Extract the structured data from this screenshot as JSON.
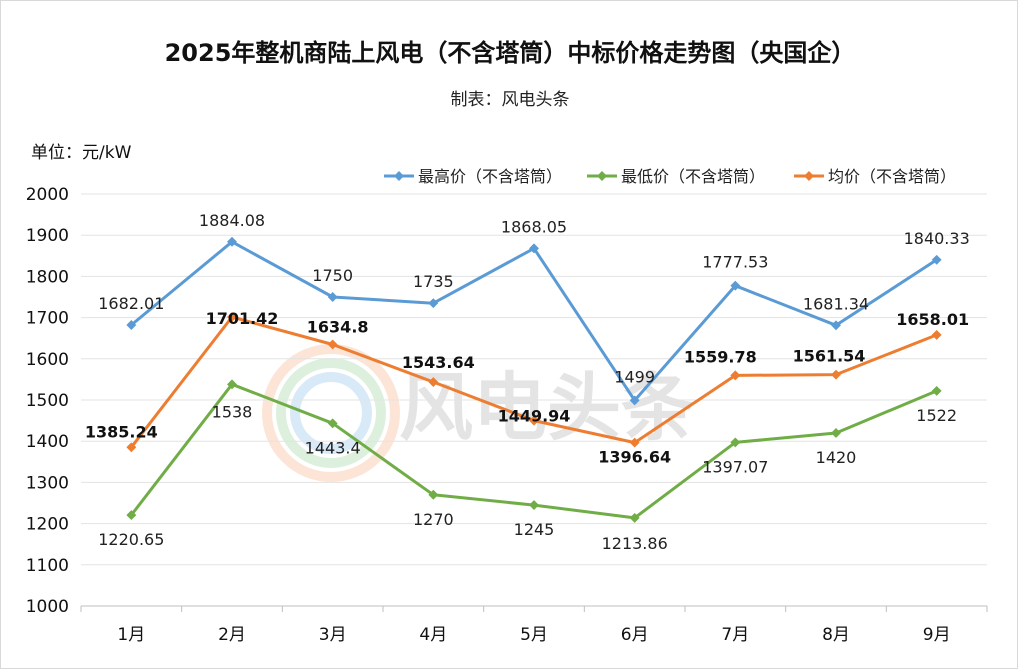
{
  "chart_data": {
    "type": "line",
    "title": "2025年整机商陆上风电（不含塔筒）中标价格走势图（央国企）",
    "subtitle": "制表：风电头条",
    "ylabel": "单位：元/kW",
    "watermark": "风电头条",
    "categories": [
      "1月",
      "2月",
      "3月",
      "4月",
      "5月",
      "6月",
      "7月",
      "8月",
      "9月"
    ],
    "ylim": [
      1000,
      2000
    ],
    "yticks": [
      1000,
      1100,
      1200,
      1300,
      1400,
      1500,
      1600,
      1700,
      1800,
      1900,
      2000
    ],
    "grid": true,
    "legend_position": "top-right",
    "series": [
      {
        "name": "最高价（不含塔筒）",
        "color": "#5b9bd5",
        "values": [
          1682.01,
          1884.08,
          1750,
          1735,
          1868.05,
          1499,
          1777.53,
          1681.34,
          1840.33
        ],
        "labels": [
          "1682.01",
          "1884.08",
          "1750",
          "1735",
          "1868.05",
          "1499",
          "1777.53",
          "1681.34",
          "1840.33"
        ]
      },
      {
        "name": "最低价（不含塔筒）",
        "color": "#70ad47",
        "values": [
          1220.65,
          1538,
          1443.4,
          1270,
          1245,
          1213.86,
          1397.07,
          1420,
          1522
        ],
        "labels": [
          "1220.65",
          "1538",
          "1443.4",
          "1270",
          "1245",
          "1213.86",
          "1397.07",
          "1420",
          "1522"
        ]
      },
      {
        "name": "均价（不含塔筒）",
        "color": "#ed7d31",
        "values": [
          1385.24,
          1701.42,
          1634.8,
          1543.64,
          1449.94,
          1396.64,
          1559.78,
          1561.54,
          1658.01
        ],
        "labels": [
          "1385.24",
          "1701.42",
          "1634.8",
          "1543.64",
          "1449.94",
          "1396.64",
          "1559.78",
          "1561.54",
          "1658.01"
        ]
      }
    ]
  }
}
